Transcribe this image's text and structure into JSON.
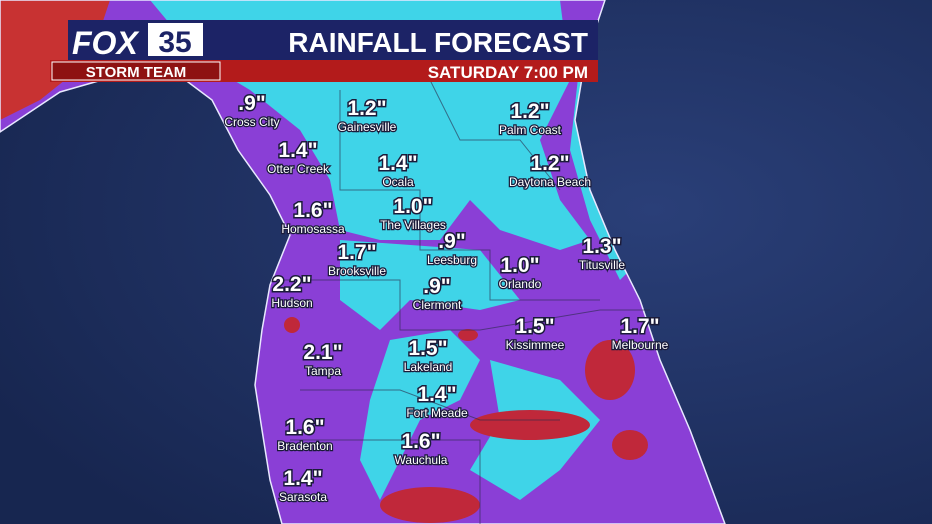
{
  "header": {
    "logo_fox": "FOX",
    "logo_number": "35",
    "team": "STORM TEAM",
    "title": "RAINFALL FORECAST",
    "subtitle": "SATURDAY 7:00 PM"
  },
  "cities": [
    {
      "amount": ".9\"",
      "name": "Cross City"
    },
    {
      "amount": "1.2\"",
      "name": "Gainesville"
    },
    {
      "amount": "1.2\"",
      "name": "Palm Coast"
    },
    {
      "amount": "1.4\"",
      "name": "Otter Creek"
    },
    {
      "amount": "1.4\"",
      "name": "Ocala"
    },
    {
      "amount": "1.2\"",
      "name": "Daytona Beach"
    },
    {
      "amount": "1.6\"",
      "name": "Homosassa"
    },
    {
      "amount": "1.0\"",
      "name": "The Villages"
    },
    {
      "amount": "1.7\"",
      "name": "Brooksville"
    },
    {
      "amount": ".9\"",
      "name": "Leesburg"
    },
    {
      "amount": "1.0\"",
      "name": "Orlando"
    },
    {
      "amount": "1.3\"",
      "name": "Titusville"
    },
    {
      "amount": "2.2\"",
      "name": "Hudson"
    },
    {
      "amount": ".9\"",
      "name": "Clermont"
    },
    {
      "amount": "1.5\"",
      "name": "Kissimmee"
    },
    {
      "amount": "1.7\"",
      "name": "Melbourne"
    },
    {
      "amount": "2.1\"",
      "name": "Tampa"
    },
    {
      "amount": "1.5\"",
      "name": "Lakeland"
    },
    {
      "amount": "1.4\"",
      "name": "Fort Meade"
    },
    {
      "amount": "1.6\"",
      "name": "Bradenton"
    },
    {
      "amount": "1.6\"",
      "name": "Wauchula"
    },
    {
      "amount": "1.4\"",
      "name": "Sarasota"
    }
  ]
}
